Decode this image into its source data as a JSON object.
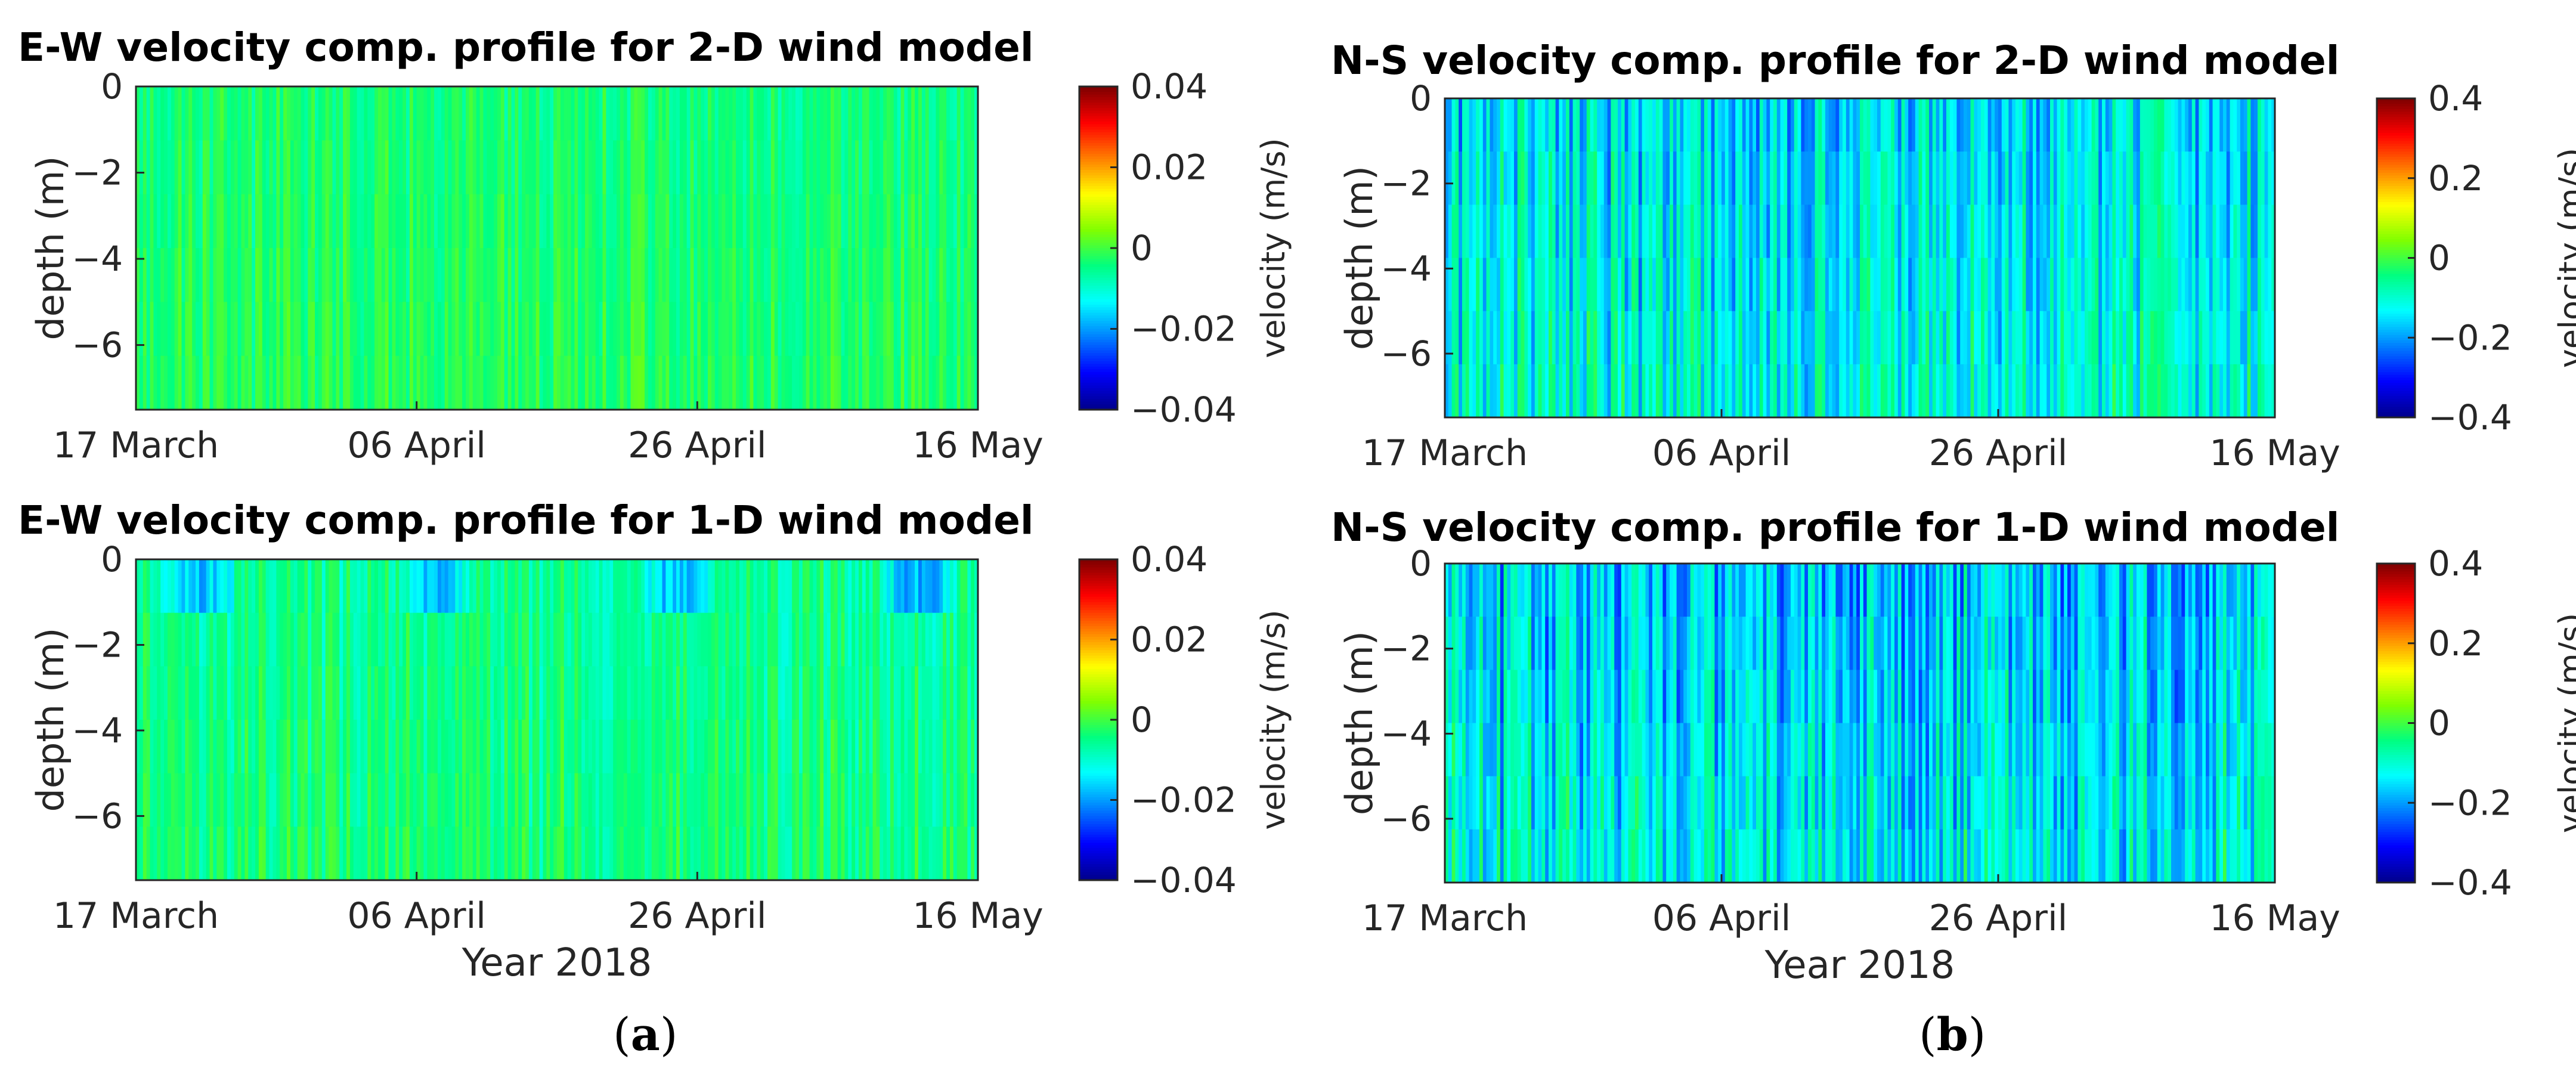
{
  "figure": {
    "sublabels": {
      "a_open": "(",
      "a_letter": "a",
      "a_close": ")",
      "b_open": "(",
      "b_letter": "b",
      "b_close": ")"
    }
  },
  "colormap": {
    "name": "jet",
    "stops": [
      "#00008f",
      "#0000ff",
      "#0080ff",
      "#00ffff",
      "#00ff80",
      "#80ff00",
      "#ffff00",
      "#ff8000",
      "#ff0000",
      "#800000"
    ]
  },
  "chart_data": [
    {
      "id": "ew2d",
      "type": "heatmap",
      "title": "E-W velocity comp. profile for 2-D wind model",
      "ylabel": "depth (m)",
      "xlabel": "",
      "x_ticks": [
        "17 March",
        "06 April",
        "26 April",
        "16 May"
      ],
      "x_range": [
        "2018-03-17",
        "2018-05-16"
      ],
      "y_ticks": [
        0,
        -2,
        -4,
        -6
      ],
      "ylim": [
        -7.5,
        0
      ],
      "colorbar": {
        "label": "velocity (m/s)",
        "range": [
          -0.04,
          0.04
        ],
        "ticks": [
          "0.04",
          "0.02",
          "0",
          "−0.02",
          "−0.04"
        ]
      },
      "field": {
        "mean": -0.004,
        "stripe_amplitude": 0.004,
        "surface_anomaly": 0.0
      }
    },
    {
      "id": "ns2d",
      "type": "heatmap",
      "title": "N-S velocity comp. profile for 2-D wind model",
      "ylabel": "depth (m)",
      "xlabel": "",
      "x_ticks": [
        "17 March",
        "06 April",
        "26 April",
        "16 May"
      ],
      "x_range": [
        "2018-03-17",
        "2018-05-16"
      ],
      "y_ticks": [
        0,
        -2,
        -4,
        -6
      ],
      "ylim": [
        -7.5,
        0
      ],
      "colorbar": {
        "label": "velocity (m/s)",
        "range": [
          -0.4,
          0.4
        ],
        "ticks": [
          "0.4",
          "0.2",
          "0",
          "−0.2",
          "−0.4"
        ]
      },
      "field": {
        "mean": -0.15,
        "stripe_amplitude": 0.09,
        "surface_anomaly": 0.0
      }
    },
    {
      "id": "ew1d",
      "type": "heatmap",
      "title": "E-W velocity comp. profile for 1-D wind model",
      "ylabel": "depth (m)",
      "xlabel": "Year 2018",
      "x_ticks": [
        "17 March",
        "06 April",
        "26 April",
        "16 May"
      ],
      "x_range": [
        "2018-03-17",
        "2018-05-16"
      ],
      "y_ticks": [
        0,
        -2,
        -4,
        -6
      ],
      "ylim": [
        -7.5,
        0
      ],
      "colorbar": {
        "label": "velocity (m/s)",
        "range": [
          -0.04,
          0.04
        ],
        "ticks": [
          "0.04",
          "0.02",
          "0",
          "−0.02",
          "−0.04"
        ]
      },
      "field": {
        "mean": -0.006,
        "stripe_amplitude": 0.005,
        "surface_anomaly": -0.02
      }
    },
    {
      "id": "ns1d",
      "type": "heatmap",
      "title": "N-S velocity comp. profile for 1-D wind model",
      "ylabel": "depth (m)",
      "xlabel": "Year 2018",
      "x_ticks": [
        "17 March",
        "06 April",
        "26 April",
        "16 May"
      ],
      "x_range": [
        "2018-03-17",
        "2018-05-16"
      ],
      "y_ticks": [
        0,
        -2,
        -4,
        -6
      ],
      "ylim": [
        -7.5,
        0
      ],
      "colorbar": {
        "label": "velocity (m/s)",
        "range": [
          -0.4,
          0.4
        ],
        "ticks": [
          "0.4",
          "0.2",
          "0",
          "−0.2",
          "−0.4"
        ]
      },
      "field": {
        "mean": -0.17,
        "stripe_amplitude": 0.1,
        "surface_anomaly": 0.0
      }
    }
  ]
}
